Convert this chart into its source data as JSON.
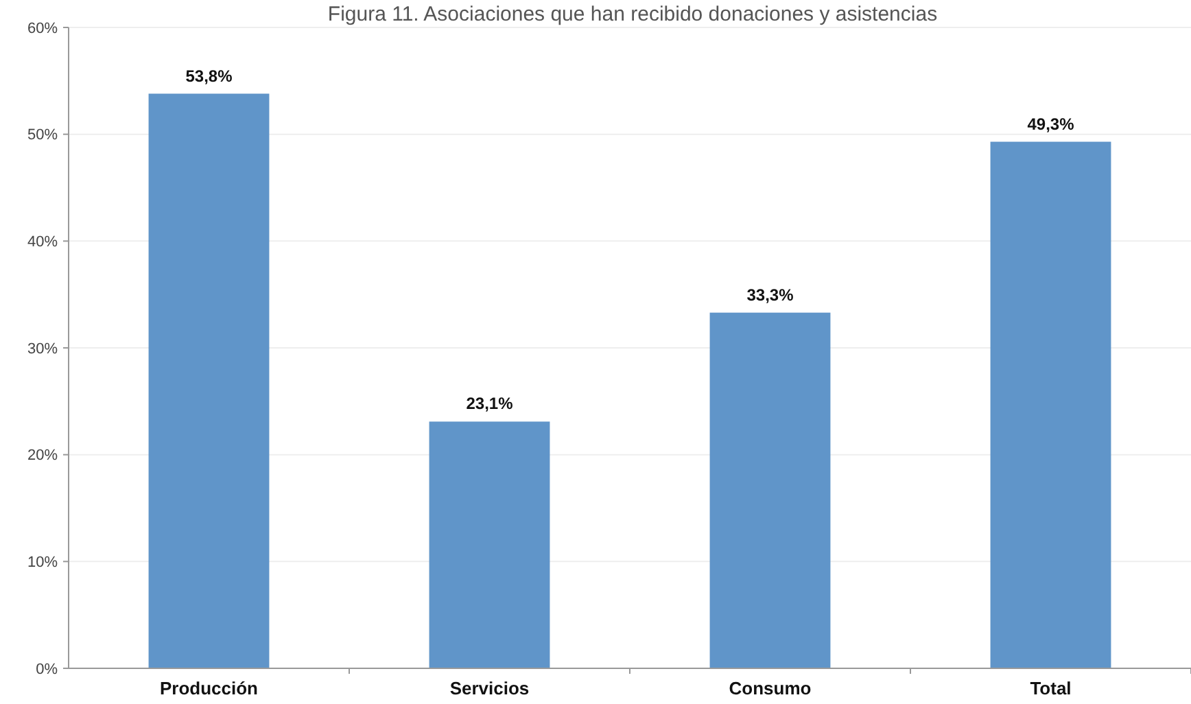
{
  "chart_data": {
    "type": "bar",
    "title": "Figura 11. Asociaciones que han recibido donaciones y asistencias",
    "categories": [
      "Producción",
      "Servicios",
      "Consumo",
      "Total"
    ],
    "values": [
      53.8,
      23.1,
      33.3,
      49.3
    ],
    "value_labels": [
      "53,8%",
      "23,1%",
      "33,3%",
      "49,3%"
    ],
    "color": "#6095c9",
    "ylim": [
      0,
      60
    ],
    "yticks": [
      {
        "value": 0,
        "label": "0%"
      },
      {
        "value": 10,
        "label": "10%"
      },
      {
        "value": 20,
        "label": "20%"
      },
      {
        "value": 30,
        "label": "30%"
      },
      {
        "value": 40,
        "label": "40%"
      },
      {
        "value": 50,
        "label": "50%"
      },
      {
        "value": 60,
        "label": "60%"
      }
    ],
    "grid": "y"
  }
}
